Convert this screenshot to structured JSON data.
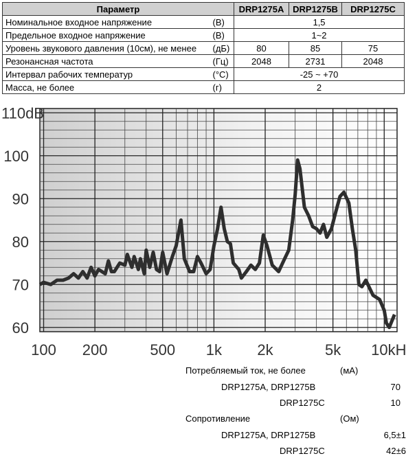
{
  "table": {
    "header": [
      "Параметр",
      "DRP1275A",
      "DRP1275B",
      "DRP1275C"
    ],
    "rows": [
      {
        "param": "Номинальное входное напряжение",
        "unit": "(В)",
        "values": [
          "1,5"
        ]
      },
      {
        "param": "Предельное входное напряжение",
        "unit": "(В)",
        "values": [
          "1~2"
        ]
      },
      {
        "param": "Уровень звукового давления (10см), не менее",
        "unit": "(дБ)",
        "values": [
          "80",
          "85",
          "75"
        ]
      },
      {
        "param": "Резонансная частота",
        "unit": "(Гц)",
        "values": [
          "2048",
          "2731",
          "2048"
        ]
      },
      {
        "param": "Интервал рабочих температур",
        "unit": "(°C)",
        "values": [
          "-25 ~ +70"
        ]
      },
      {
        "param": "Масса, не более",
        "unit": "(г)",
        "values": [
          "2"
        ]
      }
    ]
  },
  "chart_data": {
    "type": "line",
    "log_x": true,
    "color": "#2e2e2e",
    "x": [
      95,
      100,
      110,
      120,
      130,
      140,
      150,
      160,
      170,
      180,
      190,
      200,
      210,
      220,
      230,
      240,
      250,
      260,
      280,
      300,
      310,
      330,
      340,
      360,
      370,
      390,
      400,
      420,
      440,
      460,
      480,
      500,
      530,
      570,
      600,
      640,
      670,
      720,
      760,
      800,
      840,
      900,
      950,
      1000,
      1050,
      1100,
      1150,
      1200,
      1250,
      1300,
      1400,
      1450,
      1550,
      1650,
      1750,
      1850,
      1950,
      2050,
      2200,
      2400,
      2600,
      2750,
      2900,
      3000,
      3100,
      3200,
      3400,
      3600,
      3800,
      4000,
      4200,
      4400,
      4600,
      4900,
      5200,
      5500,
      5800,
      6200,
      6500,
      6800,
      7100,
      7400,
      7800,
      8600,
      9400,
      10000,
      10300,
      10700,
      11500
    ],
    "values": [
      70,
      70.5,
      70,
      71,
      71,
      71.5,
      72.5,
      71.5,
      73,
      71.5,
      74,
      72,
      73.5,
      73,
      72.5,
      75.5,
      73,
      73,
      75,
      74.5,
      77,
      74,
      76.5,
      73.5,
      76,
      72.5,
      78,
      74,
      77.5,
      73.5,
      73,
      77.5,
      72.5,
      76.5,
      79,
      85,
      76,
      73,
      73,
      76.5,
      75,
      72.5,
      73.5,
      79,
      83,
      88,
      83,
      80,
      79.5,
      75,
      73.5,
      71.5,
      73,
      74.5,
      73.5,
      75,
      81.5,
      79,
      74.5,
      73,
      76,
      78,
      85,
      91,
      99,
      97,
      88,
      86,
      83.5,
      83,
      82,
      84,
      81,
      83,
      87,
      90.5,
      91.5,
      89,
      83,
      78,
      70,
      69.5,
      71,
      67.5,
      66.5,
      64,
      61,
      60,
      63
    ],
    "xlim": [
      95,
      11900
    ],
    "ylim": [
      59,
      111
    ],
    "xticks": [
      100,
      200,
      500,
      {
        "value": 1000,
        "label": "1k"
      },
      {
        "value": 2000,
        "label": "2k"
      },
      {
        "value": 5000,
        "label": "5k"
      },
      {
        "value": 10000,
        "label": "10kHz"
      }
    ],
    "yticks": [
      60,
      70,
      80,
      90,
      100,
      {
        "value": 110,
        "label": "110dB"
      }
    ],
    "xminor": [
      300,
      400,
      600,
      700,
      800,
      900,
      3000,
      4000,
      6000,
      7000,
      8000,
      9000
    ],
    "yminor": [
      62,
      64,
      66,
      68,
      72,
      74,
      76,
      78,
      82,
      84,
      86,
      88,
      92,
      94,
      96,
      98,
      102,
      104,
      106,
      108
    ],
    "grid": true
  },
  "specs": [
    {
      "label": "Потребляемый ток, не более",
      "unit": "(мА)"
    },
    {
      "label": "DRP1275A, DRP1275B",
      "value": "70"
    },
    {
      "label": "DRP1275C",
      "value": "10"
    },
    {
      "label": "Сопротивление",
      "unit": "(Ом)"
    },
    {
      "label": "DRP1275A, DRP1275B",
      "value": "6,5±1"
    },
    {
      "label": "DRP1275C",
      "value": "42±6"
    }
  ]
}
